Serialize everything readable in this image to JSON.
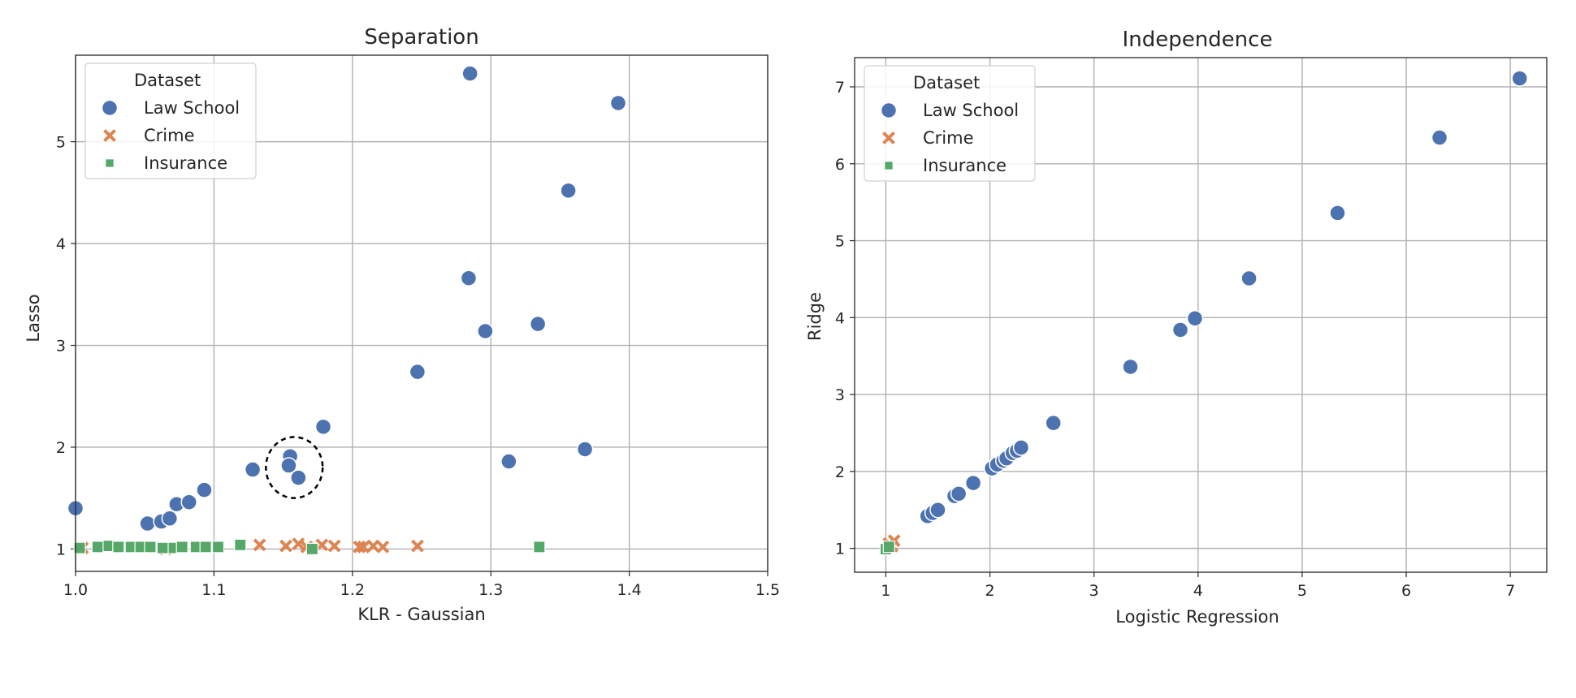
{
  "chart_data": [
    {
      "type": "scatter",
      "title": "Separation",
      "xlabel": "KLR - Gaussian",
      "ylabel": "Lasso",
      "xlim": [
        1.0,
        1.5
      ],
      "ylim": [
        0.78,
        5.85
      ],
      "xticks": [
        1.0,
        1.1,
        1.2,
        1.3,
        1.4,
        1.5
      ],
      "yticks": [
        1,
        2,
        3,
        4,
        5
      ],
      "xtick_labels": [
        "1.0",
        "1.1",
        "1.2",
        "1.3",
        "1.4",
        "1.5"
      ],
      "ytick_labels": [
        "1",
        "2",
        "3",
        "4",
        "5"
      ],
      "grid": true,
      "legend_title": "Dataset",
      "legend_position": "top-left",
      "annotation": {
        "type": "dashed-ellipse",
        "cx": 1.158,
        "cy": 1.8,
        "rx": 0.0205,
        "ry": 0.3
      },
      "series": [
        {
          "name": "Law School",
          "marker": "circle",
          "color": "#4c72b0",
          "points": [
            [
              1.0,
              1.4
            ],
            [
              1.052,
              1.25
            ],
            [
              1.062,
              1.27
            ],
            [
              1.068,
              1.3
            ],
            [
              1.073,
              1.44
            ],
            [
              1.082,
              1.46
            ],
            [
              1.093,
              1.58
            ],
            [
              1.128,
              1.78
            ],
            [
              1.155,
              1.91
            ],
            [
              1.154,
              1.82
            ],
            [
              1.161,
              1.7
            ],
            [
              1.179,
              2.2
            ],
            [
              1.247,
              2.74
            ],
            [
              1.284,
              3.66
            ],
            [
              1.285,
              5.67
            ],
            [
              1.296,
              3.14
            ],
            [
              1.313,
              1.86
            ],
            [
              1.334,
              3.21
            ],
            [
              1.356,
              4.52
            ],
            [
              1.368,
              1.98
            ],
            [
              1.392,
              5.38
            ]
          ]
        },
        {
          "name": "Crime",
          "marker": "x",
          "color": "#dd8452",
          "points": [
            [
              1.005,
              1.01
            ],
            [
              1.065,
              1.0
            ],
            [
              1.133,
              1.04
            ],
            [
              1.152,
              1.03
            ],
            [
              1.161,
              1.05
            ],
            [
              1.167,
              1.02
            ],
            [
              1.178,
              1.04
            ],
            [
              1.187,
              1.03
            ],
            [
              1.205,
              1.02
            ],
            [
              1.208,
              1.02
            ],
            [
              1.215,
              1.03
            ],
            [
              1.222,
              1.02
            ],
            [
              1.247,
              1.03
            ]
          ]
        },
        {
          "name": "Insurance",
          "marker": "square",
          "color": "#55a868",
          "points": [
            [
              1.003,
              1.01
            ],
            [
              1.016,
              1.02
            ],
            [
              1.024,
              1.03
            ],
            [
              1.031,
              1.02
            ],
            [
              1.04,
              1.02
            ],
            [
              1.047,
              1.02
            ],
            [
              1.054,
              1.02
            ],
            [
              1.063,
              1.01
            ],
            [
              1.071,
              1.01
            ],
            [
              1.077,
              1.02
            ],
            [
              1.087,
              1.02
            ],
            [
              1.094,
              1.02
            ],
            [
              1.103,
              1.02
            ],
            [
              1.119,
              1.04
            ],
            [
              1.171,
              1.0
            ],
            [
              1.335,
              1.02
            ]
          ]
        }
      ]
    },
    {
      "type": "scatter",
      "title": "Independence",
      "xlabel": "Logistic Regression",
      "ylabel": "Ridge",
      "xlim": [
        0.7,
        7.35
      ],
      "ylim": [
        0.69,
        7.38
      ],
      "xticks": [
        1,
        2,
        3,
        4,
        5,
        6,
        7
      ],
      "yticks": [
        1,
        2,
        3,
        4,
        5,
        6,
        7
      ],
      "xtick_labels": [
        "1",
        "2",
        "3",
        "4",
        "5",
        "6",
        "7"
      ],
      "ytick_labels": [
        "1",
        "2",
        "3",
        "4",
        "5",
        "6",
        "7"
      ],
      "grid": true,
      "legend_title": "Dataset",
      "legend_position": "top-left",
      "series": [
        {
          "name": "Law School",
          "marker": "circle",
          "color": "#4c72b0",
          "points": [
            [
              1.4,
              1.42
            ],
            [
              1.45,
              1.46
            ],
            [
              1.5,
              1.5
            ],
            [
              1.66,
              1.68
            ],
            [
              1.7,
              1.71
            ],
            [
              1.84,
              1.85
            ],
            [
              2.02,
              2.04
            ],
            [
              2.07,
              2.09
            ],
            [
              2.13,
              2.14
            ],
            [
              2.16,
              2.17
            ],
            [
              2.22,
              2.24
            ],
            [
              2.26,
              2.27
            ],
            [
              2.3,
              2.31
            ],
            [
              2.61,
              2.63
            ],
            [
              3.35,
              3.36
            ],
            [
              3.83,
              3.84
            ],
            [
              3.97,
              3.99
            ],
            [
              4.49,
              4.51
            ],
            [
              5.34,
              5.36
            ],
            [
              6.32,
              6.34
            ],
            [
              7.09,
              7.11
            ]
          ]
        },
        {
          "name": "Crime",
          "marker": "x",
          "color": "#dd8452",
          "points": [
            [
              1.03,
              1.06
            ],
            [
              1.08,
              1.1
            ],
            [
              1.06,
              1.03
            ]
          ]
        },
        {
          "name": "Insurance",
          "marker": "square",
          "color": "#55a868",
          "points": [
            [
              1.0,
              0.99
            ],
            [
              1.03,
              1.02
            ]
          ]
        }
      ]
    }
  ]
}
